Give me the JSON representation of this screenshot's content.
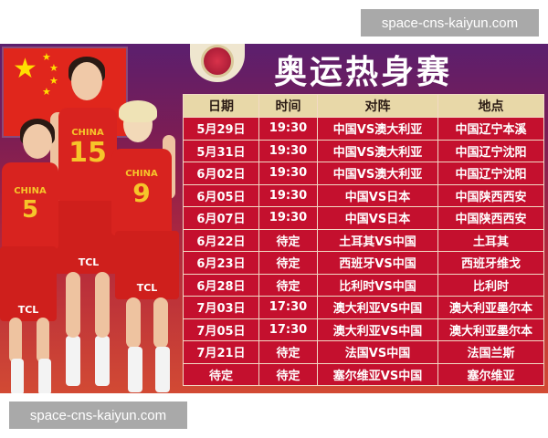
{
  "watermark": "space-cns-kaiyun.com",
  "poster": {
    "title": "奥运热身赛",
    "players": [
      {
        "jersey": "CHINA",
        "number": "5",
        "sponsor": "TCL"
      },
      {
        "jersey": "CHINA",
        "number": "15",
        "sponsor": "TCL"
      },
      {
        "jersey": "CHINA",
        "number": "9",
        "sponsor": "TCL"
      }
    ],
    "colors": {
      "table_row": "#c4102e",
      "table_header": "#e8d8a8",
      "background_top": "#5b1f6e",
      "background_bottom": "#d24a34"
    }
  },
  "schedule": {
    "headers": [
      "日期",
      "时间",
      "对阵",
      "地点"
    ],
    "rows": [
      [
        "5月29日",
        "19:30",
        "中国VS澳大利亚",
        "中国辽宁本溪"
      ],
      [
        "5月31日",
        "19:30",
        "中国VS澳大利亚",
        "中国辽宁沈阳"
      ],
      [
        "6月02日",
        "19:30",
        "中国VS澳大利亚",
        "中国辽宁沈阳"
      ],
      [
        "6月05日",
        "19:30",
        "中国VS日本",
        "中国陕西西安"
      ],
      [
        "6月07日",
        "19:30",
        "中国VS日本",
        "中国陕西西安"
      ],
      [
        "6月22日",
        "待定",
        "土耳其VS中国",
        "土耳其"
      ],
      [
        "6月23日",
        "待定",
        "西班牙VS中国",
        "西班牙维戈"
      ],
      [
        "6月28日",
        "待定",
        "比利时VS中国",
        "比利时"
      ],
      [
        "7月03日",
        "17:30",
        "澳大利亚VS中国",
        "澳大利亚墨尔本"
      ],
      [
        "7月05日",
        "17:30",
        "澳大利亚VS中国",
        "澳大利亚墨尔本"
      ],
      [
        "7月21日",
        "待定",
        "法国VS中国",
        "法国兰斯"
      ],
      [
        "待定",
        "待定",
        "塞尔维亚VS中国",
        "塞尔维亚"
      ]
    ]
  }
}
